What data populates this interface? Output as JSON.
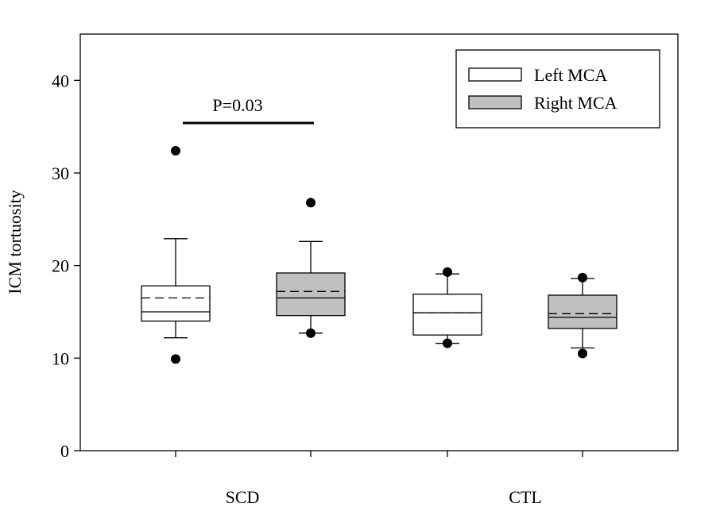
{
  "chart_data": {
    "type": "box",
    "title": "",
    "xlabel": "",
    "ylabel": "ICM tortuosity",
    "ylim": [
      0,
      45
    ],
    "yticks": [
      0,
      10,
      20,
      30,
      40
    ],
    "groups": [
      "SCD",
      "CTL"
    ],
    "legend": {
      "position": "top-right",
      "entries": [
        {
          "name": "Left MCA",
          "color": "#ffffff"
        },
        {
          "name": "Right MCA",
          "color": "#c0c0c0"
        }
      ]
    },
    "annotation": {
      "text": "P=0.03",
      "group": "SCD"
    },
    "boxes": [
      {
        "group": "SCD",
        "series": "Left MCA",
        "color": "#ffffff",
        "whisker_low": 12.2,
        "q1": 14.0,
        "median": 15.0,
        "mean": 16.5,
        "q3": 17.8,
        "whisker_high": 22.9,
        "outliers": [
          9.9,
          32.4
        ]
      },
      {
        "group": "SCD",
        "series": "Right MCA",
        "color": "#c0c0c0",
        "whisker_low": 12.7,
        "q1": 14.6,
        "median": 16.5,
        "mean": 17.2,
        "q3": 19.2,
        "whisker_high": 22.6,
        "outliers": [
          12.7,
          26.8
        ]
      },
      {
        "group": "CTL",
        "series": "Left MCA",
        "color": "#ffffff",
        "whisker_low": 11.6,
        "q1": 12.5,
        "median": 14.9,
        "mean": 14.9,
        "q3": 16.9,
        "whisker_high": 19.1,
        "outliers": [
          11.6,
          19.3
        ]
      },
      {
        "group": "CTL",
        "series": "Right MCA",
        "color": "#c0c0c0",
        "whisker_low": 11.1,
        "q1": 13.2,
        "median": 14.4,
        "mean": 14.8,
        "q3": 16.8,
        "whisker_high": 18.6,
        "outliers": [
          10.5,
          18.7
        ]
      }
    ]
  }
}
